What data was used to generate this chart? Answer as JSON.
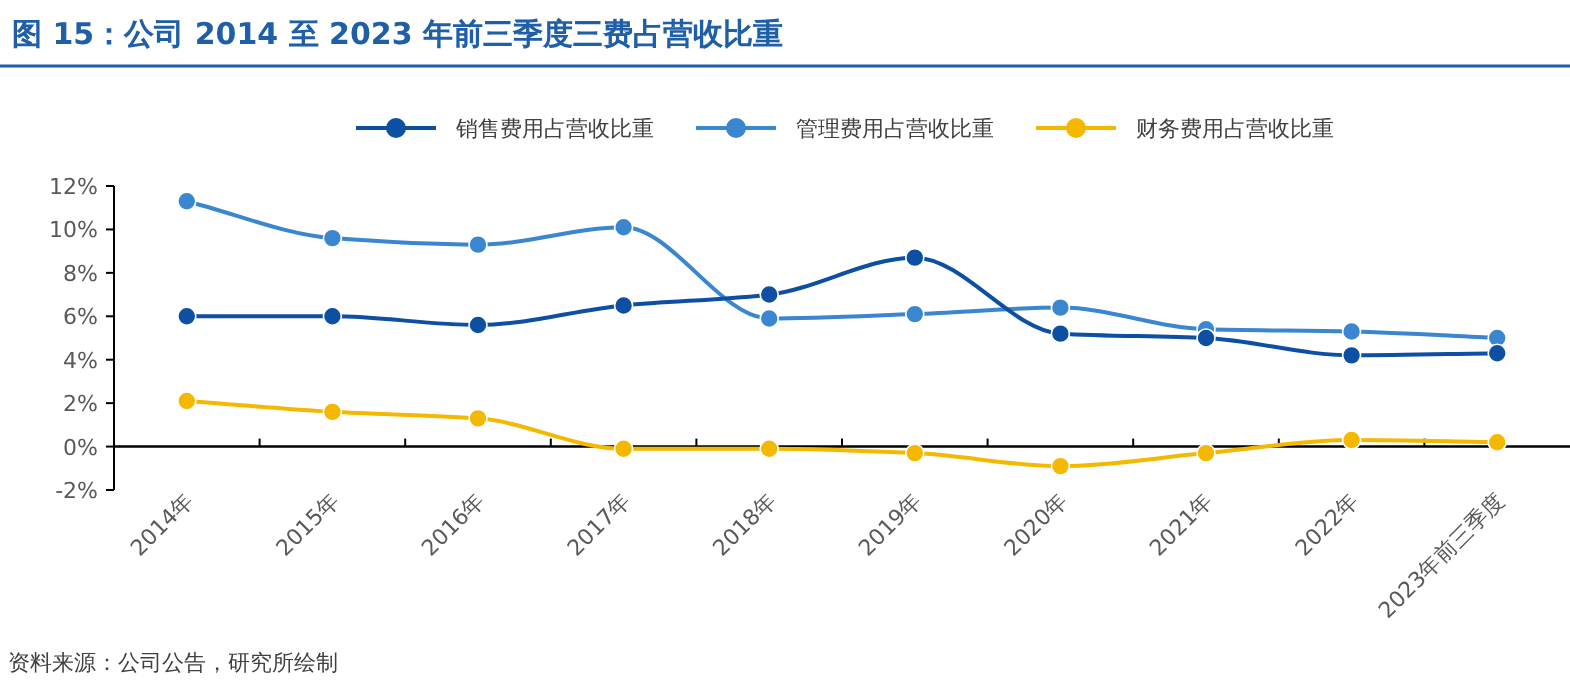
{
  "chart_data": {
    "type": "line",
    "title": "图 15：公司 2014 至 2023 年前三季度三费占营收比重",
    "categories": [
      "2014年",
      "2015年",
      "2016年",
      "2017年",
      "2018年",
      "2019年",
      "2020年",
      "2021年",
      "2022年",
      "2023年前三季度"
    ],
    "series": [
      {
        "name": "销售费用占营收比重",
        "color": "#0d4fa3",
        "values": [
          6.0,
          6.0,
          5.6,
          6.5,
          7.0,
          8.7,
          5.2,
          5.0,
          4.2,
          4.3
        ]
      },
      {
        "name": "管理费用占营收比重",
        "color": "#3a86d0",
        "values": [
          11.3,
          9.6,
          9.3,
          10.1,
          5.9,
          6.1,
          6.4,
          5.4,
          5.3,
          5.0
        ]
      },
      {
        "name": "财务费用占营收比重",
        "color": "#f5b800",
        "values": [
          2.1,
          1.6,
          1.3,
          -0.1,
          -0.1,
          -0.3,
          -0.9,
          -0.3,
          0.3,
          0.2
        ]
      }
    ],
    "ylim": [
      -2,
      12
    ],
    "yticks": [
      {
        "value": -2,
        "label": "-2%"
      },
      {
        "value": 0,
        "label": "0%"
      },
      {
        "value": 2,
        "label": "2%"
      },
      {
        "value": 4,
        "label": "4%"
      },
      {
        "value": 6,
        "label": "6%"
      },
      {
        "value": 8,
        "label": "8%"
      },
      {
        "value": 10,
        "label": "10%"
      },
      {
        "value": 12,
        "label": "12%"
      }
    ],
    "legend": "top",
    "marker": "circle",
    "annotations": [
      "资料来源：公司公告，研究所绘制"
    ]
  }
}
